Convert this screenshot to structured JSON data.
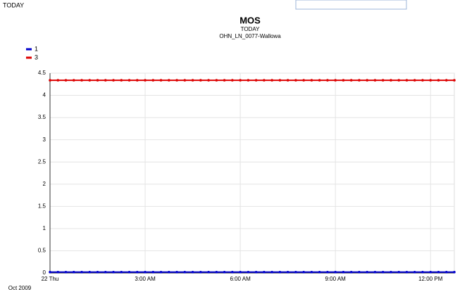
{
  "header": {
    "label": "TODAY"
  },
  "chart_data": {
    "type": "line",
    "title": "MOS",
    "subtitle": "TODAY",
    "subtitle2": "OHN_LN_0077-Wallowa",
    "x": [
      0,
      0.25,
      0.5,
      0.75,
      1,
      1.25,
      1.5,
      1.75,
      2,
      2.25,
      2.5,
      2.75,
      3,
      3.25,
      3.5,
      3.75,
      4,
      4.25,
      4.5,
      4.75,
      5,
      5.25,
      5.5,
      5.75,
      6,
      6.25,
      6.5,
      6.75,
      7,
      7.25,
      7.5,
      7.75,
      8,
      8.25,
      8.5,
      8.75,
      9,
      9.25,
      9.5,
      9.75,
      10,
      10.25,
      10.5,
      10.75,
      11,
      11.25,
      11.5,
      11.75,
      12,
      12.25,
      12.5,
      12.75
    ],
    "series": [
      {
        "name": "1",
        "color": "#0000cc",
        "values": [
          0.02,
          0.02,
          0.02,
          0.02,
          0.02,
          0.02,
          0.02,
          0.02,
          0.02,
          0.02,
          0.02,
          0.02,
          0.02,
          0.02,
          0.02,
          0.02,
          0.02,
          0.02,
          0.02,
          0.02,
          0.02,
          0.02,
          0.02,
          0.02,
          0.02,
          0.02,
          0.02,
          0.02,
          0.02,
          0.02,
          0.02,
          0.02,
          0.02,
          0.02,
          0.02,
          0.02,
          0.02,
          0.02,
          0.02,
          0.02,
          0.02,
          0.02,
          0.02,
          0.02,
          0.02,
          0.02,
          0.02,
          0.02,
          0.02,
          0.02,
          0.02,
          0.02
        ]
      },
      {
        "name": "3",
        "color": "#dd0000",
        "values": [
          4.34,
          4.34,
          4.34,
          4.34,
          4.34,
          4.34,
          4.34,
          4.34,
          4.34,
          4.34,
          4.34,
          4.34,
          4.34,
          4.34,
          4.34,
          4.34,
          4.34,
          4.34,
          4.34,
          4.34,
          4.34,
          4.34,
          4.34,
          4.34,
          4.34,
          4.34,
          4.34,
          4.34,
          4.34,
          4.34,
          4.34,
          4.34,
          4.34,
          4.34,
          4.34,
          4.34,
          4.34,
          4.34,
          4.34,
          4.34,
          4.34,
          4.34,
          4.34,
          4.34,
          4.34,
          4.34,
          4.34,
          4.34,
          4.34,
          4.34,
          4.34,
          4.34
        ]
      }
    ],
    "xlim": [
      0,
      12.75
    ],
    "xticks": [
      {
        "value": 0,
        "label": "22 Thu"
      },
      {
        "value": 3,
        "label": "3:00 AM"
      },
      {
        "value": 6,
        "label": "6:00 AM"
      },
      {
        "value": 9,
        "label": "9:00 AM"
      },
      {
        "value": 12,
        "label": "12:00 PM"
      }
    ],
    "x_sublabel": "Oct 2009",
    "ylim": [
      0,
      4.5
    ],
    "yticks": [
      0,
      0.5,
      1,
      1.5,
      2,
      2.5,
      3,
      3.5,
      4,
      4.5
    ],
    "grid": true,
    "legend": "top-left"
  }
}
